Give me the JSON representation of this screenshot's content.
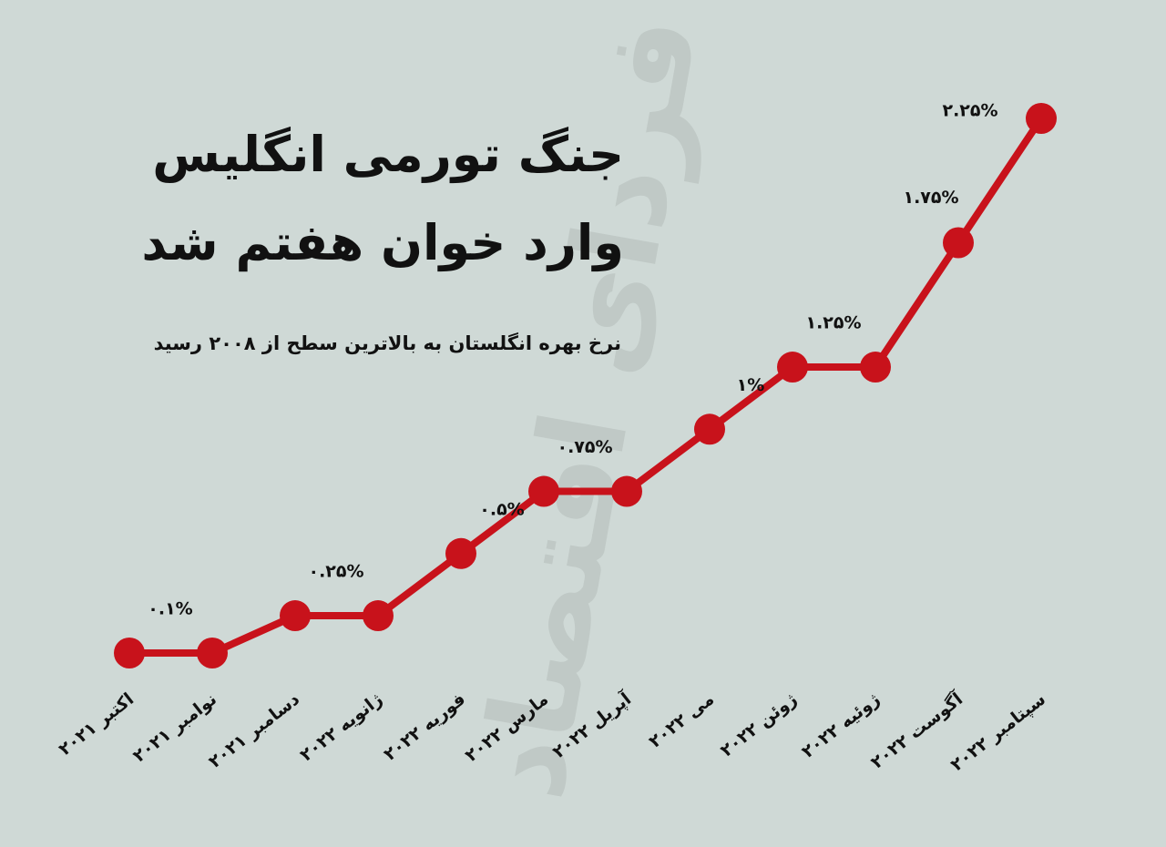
{
  "chart_data": {
    "type": "line",
    "title": [
      "جنگ تورمی انگلیس",
      "وارد خوان هفتم شد"
    ],
    "subtitle": "نرخ بهره انگلستان به بالاترین سطح از ۲۰۰۸ رسید",
    "watermark": "فردای اقتصاد",
    "categories": [
      "اکتبر ۲۰۲۱",
      "نوامبر ۲۰۲۱",
      "دسامبر ۲۰۲۱",
      "ژانویه ۲۰۲۲",
      "فوریه ۲۰۲۲",
      "مارس ۲۰۲۲",
      "آپریل ۲۰۲۲",
      "می ۲۰۲۲",
      "ژوئن ۲۰۲۲",
      "ژوئیه ۲۰۲۲",
      "آگوست ۲۰۲۲",
      "سپتامبر ۲۰۲۲"
    ],
    "values": [
      0.1,
      0.1,
      0.25,
      0.25,
      0.5,
      0.75,
      0.75,
      1,
      1.25,
      1.25,
      1.75,
      2.25
    ],
    "value_labels": [
      "۰.۱%",
      null,
      "۰.۲۵%",
      null,
      "۰.۵%",
      "۰.۷۵%",
      null,
      "۱%",
      "۱.۲۵%",
      null,
      "۱.۷۵%",
      "۲.۲۵%"
    ],
    "color": "#c8121b"
  }
}
